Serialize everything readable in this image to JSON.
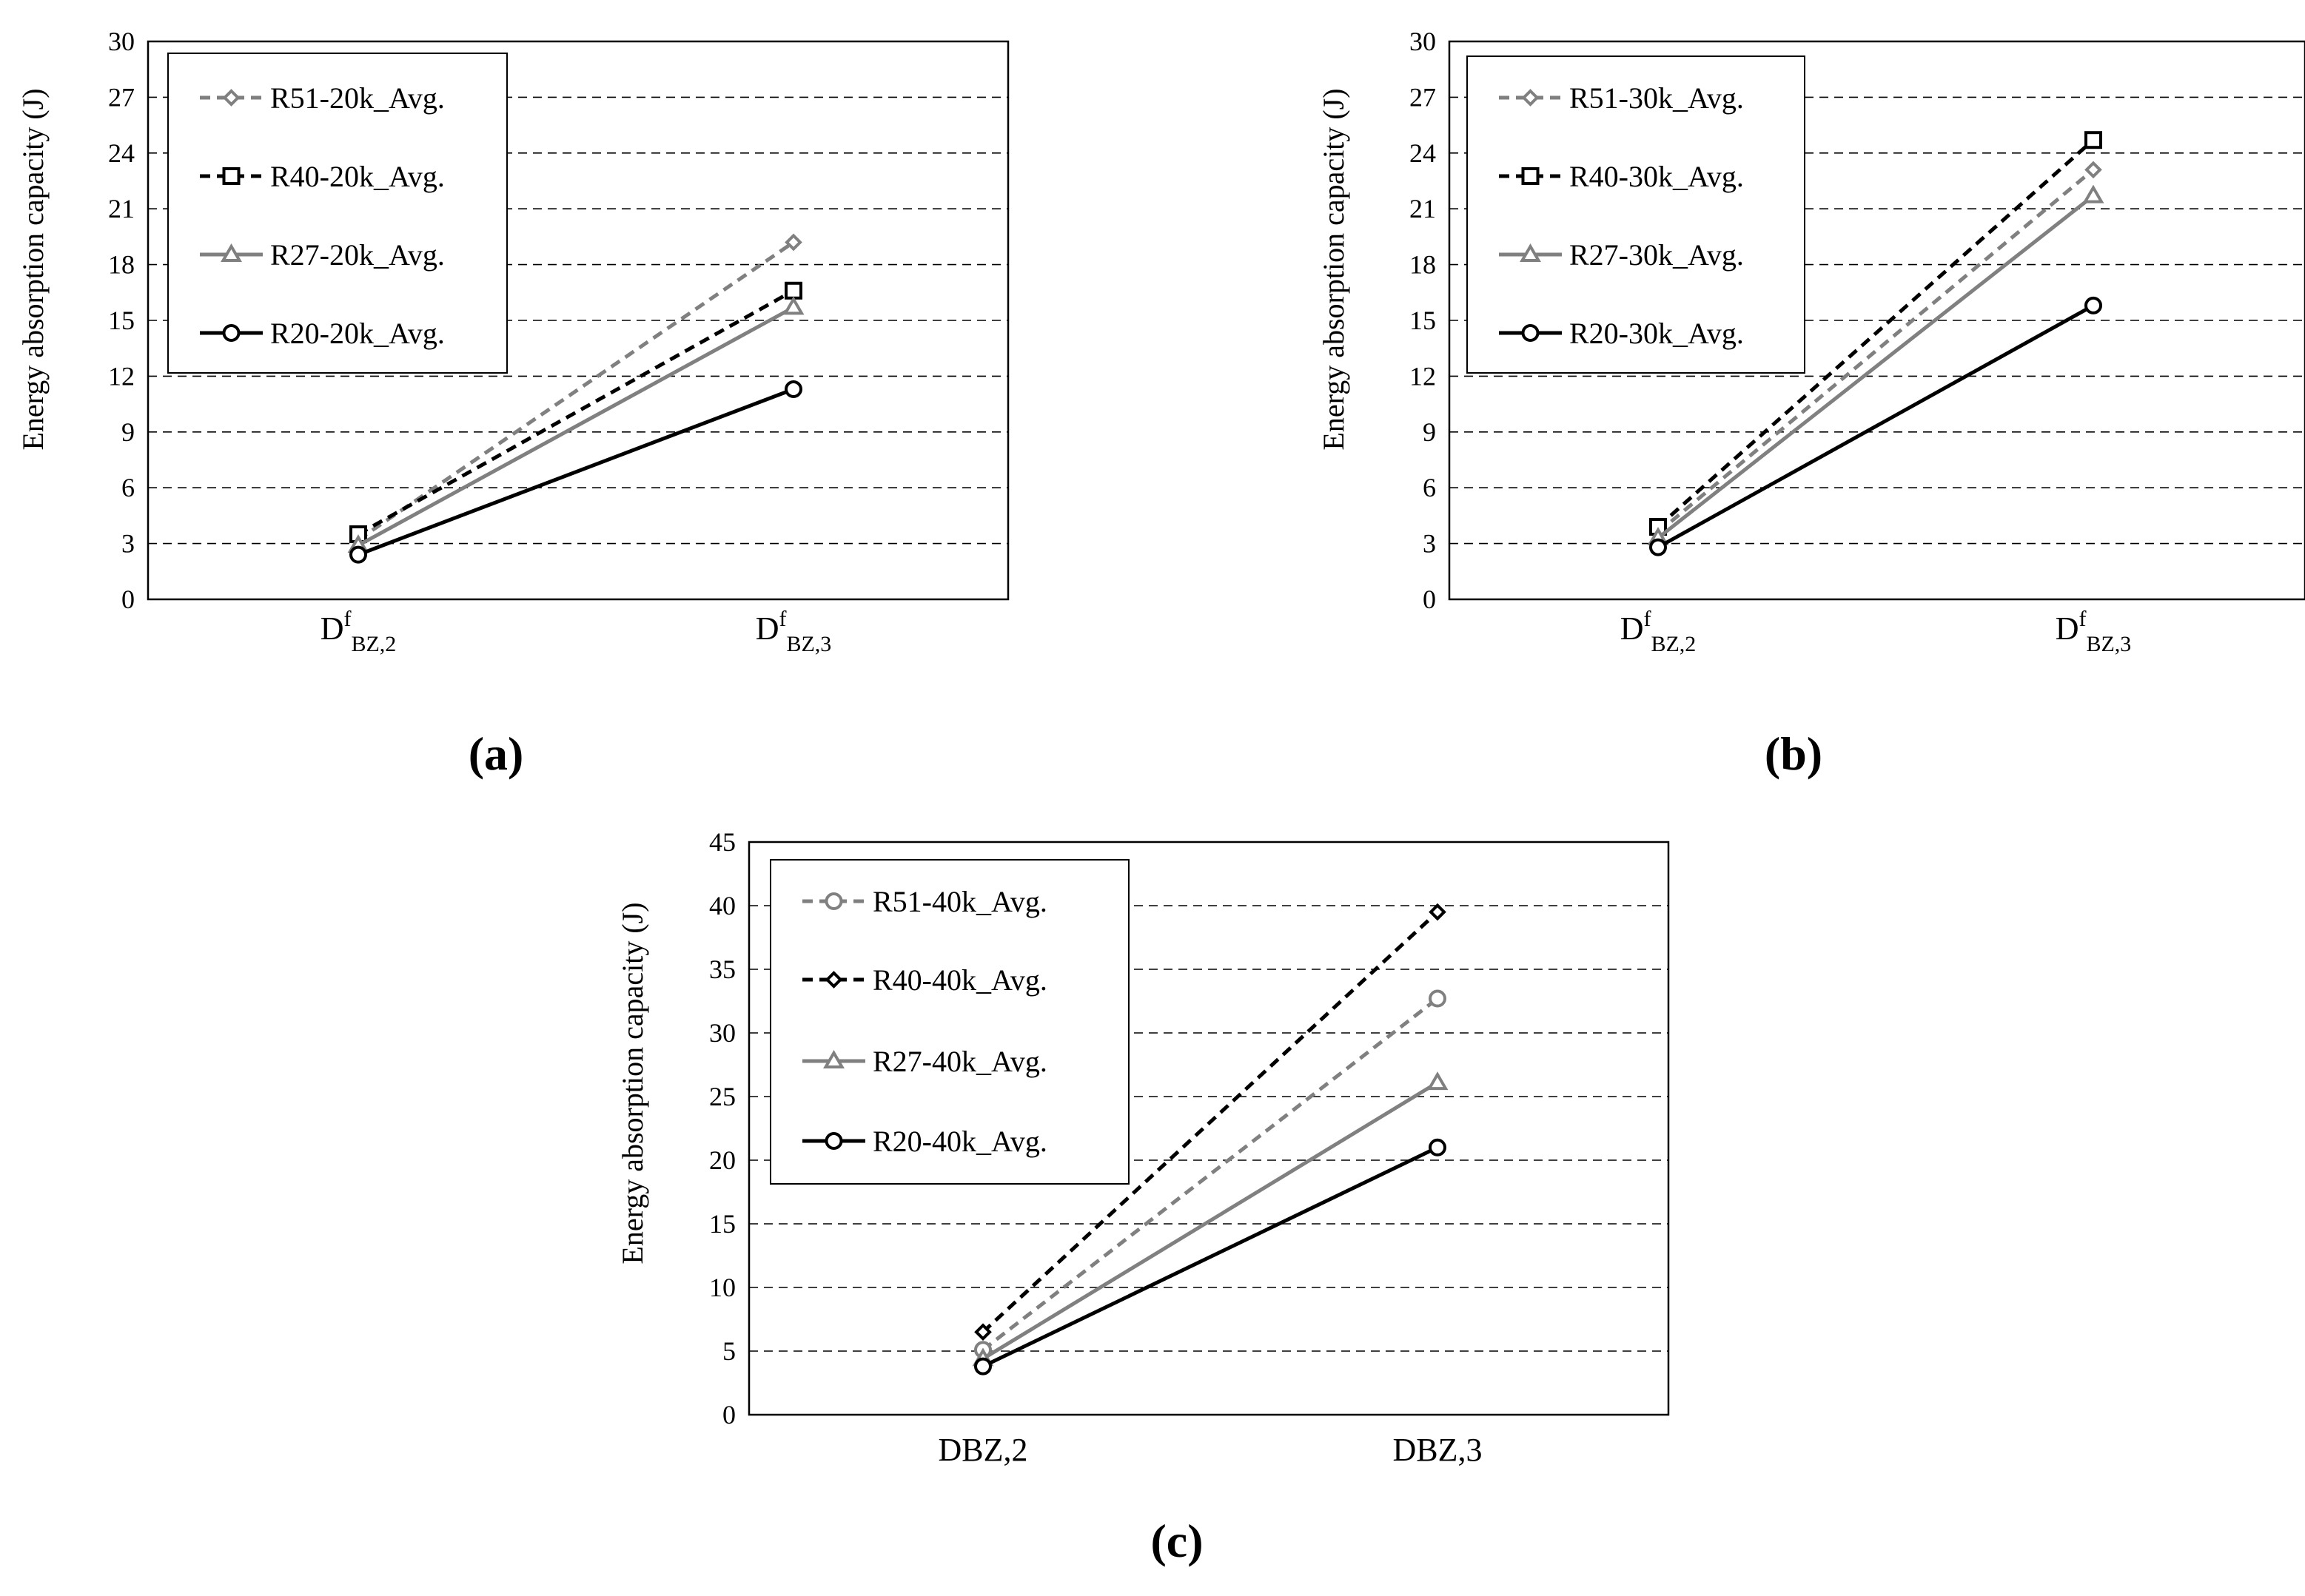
{
  "figure": {
    "panel_labels": [
      "(a)",
      "(b)",
      "(c)"
    ]
  },
  "chart_data": [
    {
      "type": "line",
      "panel": "(a)",
      "title": "",
      "xlabel": "",
      "ylabel": "Energy absorption capacity (J)",
      "categories": [
        {
          "base": "D",
          "sup": "f",
          "sub": "BZ,2"
        },
        {
          "base": "D",
          "sup": "f",
          "sub": "BZ,3"
        }
      ],
      "ylim": [
        0,
        30
      ],
      "yticks": [
        0,
        3,
        6,
        9,
        12,
        15,
        18,
        21,
        24,
        27,
        30
      ],
      "grid": "horizontal-dashed",
      "legend_position": "top-left",
      "series": [
        {
          "name": "R51-20k_Avg.",
          "values": [
            3.2,
            19.2
          ],
          "color": "#808080",
          "dash": "dashed",
          "marker": "diamond"
        },
        {
          "name": "R40-20k_Avg.",
          "values": [
            3.5,
            16.6
          ],
          "color": "#000000",
          "dash": "dashed",
          "marker": "square"
        },
        {
          "name": "R27-20k_Avg.",
          "values": [
            2.9,
            15.7
          ],
          "color": "#808080",
          "dash": "solid",
          "marker": "triangle"
        },
        {
          "name": "R20-20k_Avg.",
          "values": [
            2.4,
            11.3
          ],
          "color": "#000000",
          "dash": "solid",
          "marker": "circle"
        }
      ]
    },
    {
      "type": "line",
      "panel": "(b)",
      "title": "",
      "xlabel": "",
      "ylabel": "Energy absorption capacity (J)",
      "categories": [
        {
          "base": "D",
          "sup": "f",
          "sub": "BZ,2"
        },
        {
          "base": "D",
          "sup": "f",
          "sub": "BZ,3"
        }
      ],
      "ylim": [
        0,
        30
      ],
      "yticks": [
        0,
        3,
        6,
        9,
        12,
        15,
        18,
        21,
        24,
        27,
        30
      ],
      "grid": "horizontal-dashed",
      "legend_position": "top-left",
      "series": [
        {
          "name": "R51-30k_Avg.",
          "values": [
            3.6,
            23.1
          ],
          "color": "#808080",
          "dash": "dashed",
          "marker": "diamond"
        },
        {
          "name": "R40-30k_Avg.",
          "values": [
            3.9,
            24.7
          ],
          "color": "#000000",
          "dash": "dashed",
          "marker": "square"
        },
        {
          "name": "R27-30k_Avg.",
          "values": [
            3.3,
            21.7
          ],
          "color": "#808080",
          "dash": "solid",
          "marker": "triangle"
        },
        {
          "name": "R20-30k_Avg.",
          "values": [
            2.8,
            15.8
          ],
          "color": "#000000",
          "dash": "solid",
          "marker": "circle"
        }
      ]
    },
    {
      "type": "line",
      "panel": "(c)",
      "title": "",
      "xlabel": "",
      "ylabel": "Energy absorption capacity (J)",
      "categories": [
        {
          "base": "DBZ,2",
          "sup": "",
          "sub": ""
        },
        {
          "base": "DBZ,3",
          "sup": "",
          "sub": ""
        }
      ],
      "ylim": [
        0,
        45
      ],
      "yticks": [
        0,
        5,
        10,
        15,
        20,
        25,
        30,
        35,
        40,
        45
      ],
      "grid": "horizontal-dashed",
      "legend_position": "top-left",
      "series": [
        {
          "name": "R51-40k_Avg.",
          "values": [
            5.1,
            32.7
          ],
          "color": "#808080",
          "dash": "dashed",
          "marker": "circle"
        },
        {
          "name": "R40-40k_Avg.",
          "values": [
            6.5,
            39.5
          ],
          "color": "#000000",
          "dash": "dashed",
          "marker": "diamond"
        },
        {
          "name": "R27-40k_Avg.",
          "values": [
            4.4,
            26.1
          ],
          "color": "#808080",
          "dash": "solid",
          "marker": "triangle"
        },
        {
          "name": "R20-40k_Avg.",
          "values": [
            3.8,
            21.0
          ],
          "color": "#000000",
          "dash": "solid",
          "marker": "circle"
        }
      ]
    }
  ]
}
